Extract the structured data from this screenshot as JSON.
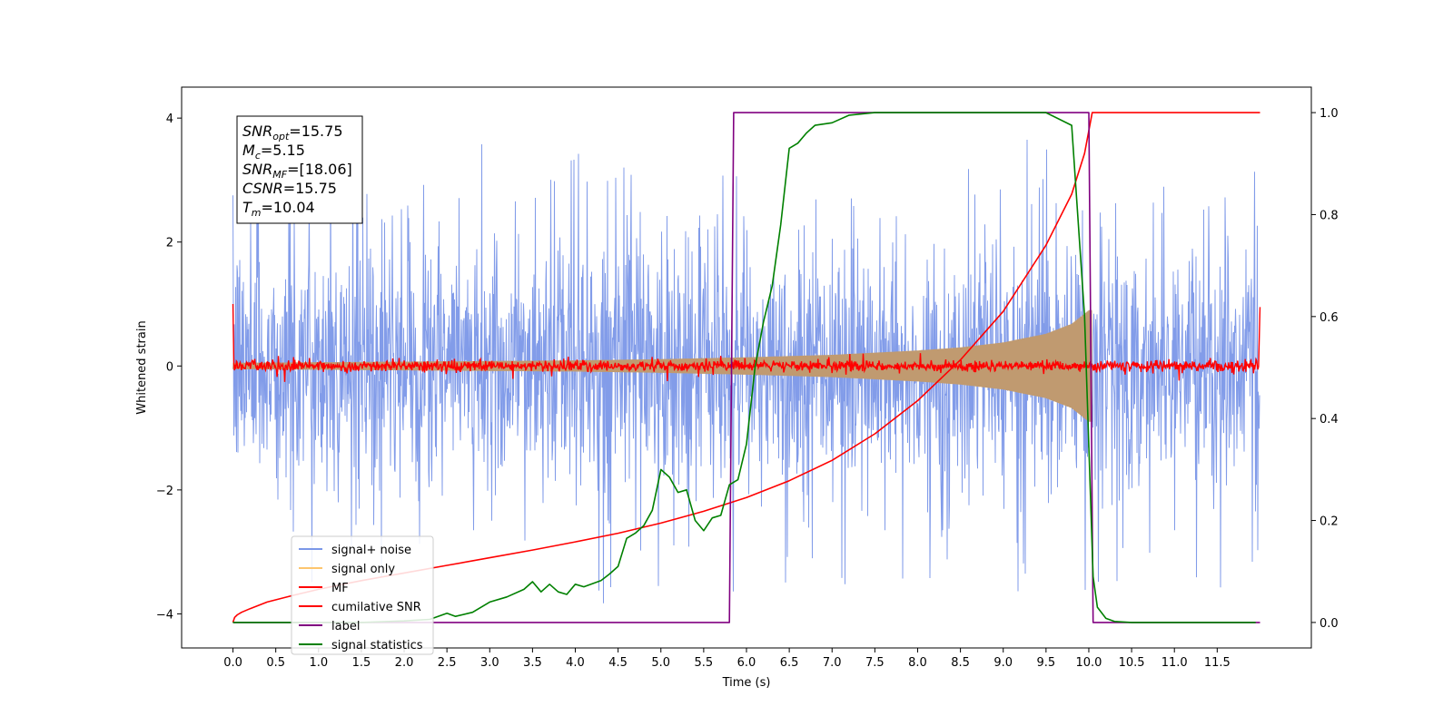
{
  "chart_data": {
    "type": "line",
    "xlabel": "Time (s)",
    "ylabel": "Whitened strain",
    "xlim": [
      -0.6,
      12.6
    ],
    "ylim": [
      -4.55,
      4.5
    ],
    "y2lim": [
      -0.05,
      1.05
    ],
    "x_ticks": [
      0.0,
      0.5,
      1.0,
      1.5,
      2.0,
      2.5,
      3.0,
      3.5,
      4.0,
      4.5,
      5.0,
      5.5,
      6.0,
      6.5,
      7.0,
      7.5,
      8.0,
      8.5,
      9.0,
      9.5,
      10.0,
      10.5,
      11.0,
      11.5
    ],
    "x_tick_labels": [
      "0.0",
      "0.5",
      "1.0",
      "1.5",
      "2.0",
      "2.5",
      "3.0",
      "3.5",
      "4.0",
      "4.5",
      "5.0",
      "5.5",
      "6.0",
      "6.5",
      "7.0",
      "7.5",
      "8.0",
      "8.5",
      "9.0",
      "9.5",
      "10.0",
      "10.5",
      "11.0",
      "11.5"
    ],
    "y_ticks": [
      4,
      2,
      0,
      -2,
      -4
    ],
    "y_tick_labels": [
      "4",
      "2",
      "0",
      "−2",
      "−4"
    ],
    "y2_ticks": [
      1.0,
      0.8,
      0.6,
      0.4,
      0.2,
      0.0
    ],
    "y2_tick_labels": [
      "1.0",
      "0.8",
      "0.6",
      "0.4",
      "0.2",
      "0.0"
    ],
    "grid": false,
    "legend_position": "lower-left",
    "annotation": {
      "lines": [
        {
          "main": "SNR",
          "sub": "opt",
          "value": "=15.75"
        },
        {
          "main": "M",
          "sub": "c",
          "value": "=5.15"
        },
        {
          "main": "SNR",
          "sub": "MF",
          "value": "=[18.06]"
        },
        {
          "main": "CSNR",
          "sub": "",
          "value": "=15.75"
        },
        {
          "main": "T",
          "sub": "m",
          "value": "=10.04"
        }
      ]
    },
    "series": [
      {
        "name": "signal+ noise",
        "color": "#7b97e8",
        "axis": "left",
        "kind": "noise",
        "x_range": [
          0.0,
          12.0
        ],
        "typical_amplitude": 1.6,
        "peak_max": 3.65,
        "peak_min": -4.15
      },
      {
        "name": "signal only",
        "color": "#fdc56e",
        "axis": "left",
        "kind": "chirp",
        "x_range": [
          0.0,
          10.04
        ],
        "envelope_x": [
          0.0,
          2.0,
          4.0,
          5.0,
          6.0,
          7.0,
          8.0,
          8.5,
          9.0,
          9.5,
          9.8,
          10.0
        ],
        "envelope_y": [
          0.05,
          0.07,
          0.09,
          0.11,
          0.14,
          0.18,
          0.25,
          0.3,
          0.38,
          0.52,
          0.68,
          0.9
        ]
      },
      {
        "name": "MF",
        "color": "#ff0000",
        "axis": "left",
        "kind": "mf",
        "x_range": [
          0.0,
          12.0
        ],
        "edge_start": 1.0,
        "edge_end": 0.95,
        "typical_amplitude": 0.1
      },
      {
        "name": "cumilative SNR",
        "color": "#ff0000",
        "axis": "right",
        "x": [
          0.0,
          0.02,
          0.05,
          0.1,
          0.2,
          0.4,
          0.7,
          1.0,
          1.5,
          2.0,
          2.5,
          3.0,
          3.5,
          4.0,
          4.5,
          5.0,
          5.5,
          6.0,
          6.5,
          7.0,
          7.5,
          8.0,
          8.5,
          9.0,
          9.5,
          9.8,
          9.95,
          10.04,
          12.0
        ],
        "y": [
          0.0,
          0.01,
          0.015,
          0.02,
          0.027,
          0.04,
          0.053,
          0.065,
          0.082,
          0.097,
          0.112,
          0.127,
          0.142,
          0.158,
          0.175,
          0.195,
          0.218,
          0.245,
          0.278,
          0.318,
          0.37,
          0.435,
          0.515,
          0.61,
          0.74,
          0.84,
          0.92,
          1.0,
          1.0
        ]
      },
      {
        "name": "label",
        "color": "#800080",
        "axis": "right",
        "x": [
          0.0,
          5.8,
          5.85,
          10.0,
          10.05,
          12.0
        ],
        "y": [
          0.0,
          0.0,
          1.0,
          1.0,
          0.0,
          0.0
        ]
      },
      {
        "name": "signal statistics",
        "color": "#008000",
        "axis": "right",
        "x": [
          0.0,
          0.5,
          1.0,
          1.5,
          2.0,
          2.3,
          2.5,
          2.6,
          2.8,
          3.0,
          3.2,
          3.4,
          3.5,
          3.6,
          3.7,
          3.8,
          3.9,
          4.0,
          4.1,
          4.3,
          4.4,
          4.5,
          4.6,
          4.7,
          4.8,
          4.9,
          5.0,
          5.1,
          5.2,
          5.3,
          5.4,
          5.5,
          5.6,
          5.7,
          5.8,
          5.9,
          6.0,
          6.1,
          6.2,
          6.3,
          6.4,
          6.5,
          6.6,
          6.7,
          6.8,
          7.0,
          7.2,
          7.5,
          8.0,
          8.5,
          9.0,
          9.5,
          9.8,
          9.95,
          10.05,
          10.1,
          10.2,
          10.3,
          10.5,
          11.0,
          11.5,
          11.95
        ],
        "y": [
          0.0,
          0.0,
          0.0,
          0.0,
          0.003,
          0.006,
          0.018,
          0.012,
          0.02,
          0.04,
          0.05,
          0.065,
          0.08,
          0.06,
          0.075,
          0.06,
          0.055,
          0.075,
          0.07,
          0.082,
          0.095,
          0.11,
          0.165,
          0.175,
          0.19,
          0.22,
          0.3,
          0.285,
          0.255,
          0.26,
          0.2,
          0.18,
          0.205,
          0.21,
          0.27,
          0.28,
          0.35,
          0.5,
          0.59,
          0.66,
          0.78,
          0.93,
          0.94,
          0.96,
          0.975,
          0.98,
          0.995,
          1.0,
          1.0,
          1.0,
          1.0,
          1.0,
          0.975,
          0.6,
          0.09,
          0.03,
          0.008,
          0.002,
          0.0,
          0.0,
          0.0,
          0.0
        ]
      }
    ]
  }
}
